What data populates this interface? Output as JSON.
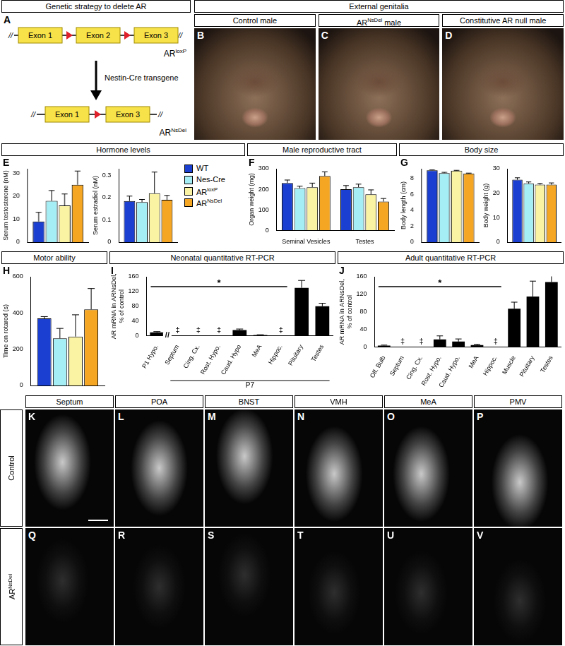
{
  "panel_a": {
    "letter": "A",
    "header": "Genetic strategy to delete AR",
    "break": "//",
    "top_exons": [
      "Exon 1",
      "Exon 2",
      "Exon 3"
    ],
    "top_allele": "ARloxP",
    "transgene": "Nestin-Cre transgene",
    "bottom_exons": [
      "Exon 1",
      "Exon 3"
    ],
    "bottom_allele": "ARNsDel"
  },
  "genitalia": {
    "header": "External genitalia",
    "photos": [
      {
        "letter": "B",
        "label": "Control male"
      },
      {
        "letter": "C",
        "label": "ARNsDel male"
      },
      {
        "letter": "D",
        "label": "Constitutive AR null male"
      }
    ]
  },
  "chart_data": [
    {
      "type": "bar",
      "letter": "E",
      "title": "Hormone levels",
      "categories": [
        null
      ],
      "series": [
        {
          "name": "WT",
          "color": "#1a3fd1",
          "values": [
            9
          ],
          "errors": [
            4
          ]
        },
        {
          "name": "Nes-Cre",
          "color": "#a6eef5",
          "values": [
            18
          ],
          "errors": [
            4.5
          ]
        },
        {
          "name": "ARloxP",
          "color": "#fbf3a4",
          "values": [
            16
          ],
          "errors": [
            5
          ]
        },
        {
          "name": "ARNsDel",
          "color": "#f5a623",
          "values": [
            25
          ],
          "errors": [
            6
          ]
        }
      ],
      "y_label": "Serum testosterone (nM)",
      "ylim": [
        0,
        32
      ],
      "yticks": [
        0,
        10,
        20,
        30
      ],
      "grid": false,
      "tick_labels": "y"
    },
    {
      "type": "bar",
      "categories": [
        null
      ],
      "series": [
        {
          "name": "WT",
          "color": "#1a3fd1",
          "values": [
            0.185
          ],
          "errors": [
            0.022
          ]
        },
        {
          "name": "Nes-Cre",
          "color": "#a6eef5",
          "values": [
            0.18
          ],
          "errors": [
            0.012
          ]
        },
        {
          "name": "ARloxP",
          "color": "#fbf3a4",
          "values": [
            0.22
          ],
          "errors": [
            0.095
          ]
        },
        {
          "name": "ARNsDel",
          "color": "#f5a623",
          "values": [
            0.19
          ],
          "errors": [
            0.02
          ]
        }
      ],
      "y_label": "Serum estradiol (nM)",
      "ylim": [
        0,
        0.33
      ],
      "yticks": [
        0,
        0.1,
        0.2,
        0.3
      ],
      "grid": false,
      "tick_labels": "y",
      "legend": "right"
    },
    {
      "type": "bar",
      "letter": "F",
      "title": "Male reproductive tract",
      "categories": [
        "Seminal Vesicles",
        "Testes"
      ],
      "series": [
        {
          "name": "WT",
          "color": "#1a3fd1",
          "values": [
            230,
            200
          ],
          "errors": [
            15,
            18
          ]
        },
        {
          "name": "Nes-Cre",
          "color": "#a6eef5",
          "values": [
            205,
            210
          ],
          "errors": [
            10,
            15
          ]
        },
        {
          "name": "ARloxP",
          "color": "#fbf3a4",
          "values": [
            210,
            175
          ],
          "errors": [
            20,
            22
          ]
        },
        {
          "name": "ARNsDel",
          "color": "#f5a623",
          "values": [
            265,
            140
          ],
          "errors": [
            20,
            15
          ]
        }
      ],
      "y_label": "Organ weight (mg)",
      "ylim": [
        0,
        300
      ],
      "yticks": [
        0,
        100,
        200,
        300
      ],
      "grid": false
    },
    {
      "type": "bar",
      "letter": "G",
      "title": "Body size",
      "categories": [
        null
      ],
      "series": [
        {
          "name": "WT",
          "color": "#1a3fd1",
          "values": [
            9.0
          ],
          "errors": [
            0.05
          ]
        },
        {
          "name": "Nes-Cre",
          "color": "#a6eef5",
          "values": [
            8.65
          ],
          "errors": [
            0.1
          ]
        },
        {
          "name": "ARloxP",
          "color": "#fbf3a4",
          "values": [
            8.95
          ],
          "errors": [
            0.05
          ]
        },
        {
          "name": "ARNsDel",
          "color": "#f5a623",
          "values": [
            8.6
          ],
          "errors": [
            0.05
          ]
        }
      ],
      "y_label": "Body length (cm)",
      "ylim": [
        0,
        9.2
      ],
      "yticks": [
        0,
        2,
        4,
        6,
        8
      ],
      "grid": false,
      "tick_labels": "y"
    },
    {
      "type": "bar",
      "categories": [
        null
      ],
      "series": [
        {
          "name": "WT",
          "color": "#1a3fd1",
          "values": [
            25.5
          ],
          "errors": [
            0.8
          ]
        },
        {
          "name": "Nes-Cre",
          "color": "#a6eef5",
          "values": [
            24
          ],
          "errors": [
            0.6
          ]
        },
        {
          "name": "ARloxP",
          "color": "#fbf3a4",
          "values": [
            23.5
          ],
          "errors": [
            0.5
          ]
        },
        {
          "name": "ARNsDel",
          "color": "#f5a623",
          "values": [
            23.5
          ],
          "errors": [
            0.7
          ]
        }
      ],
      "y_label": "Body weight (g)",
      "ylim": [
        0,
        30
      ],
      "yticks": [
        0,
        10,
        20,
        30
      ],
      "grid": false,
      "tick_labels": "y"
    },
    {
      "type": "bar",
      "letter": "H",
      "title": "Motor ability",
      "categories": [
        null
      ],
      "series": [
        {
          "name": "WT",
          "color": "#1a3fd1",
          "values": [
            370
          ],
          "errors": [
            10
          ]
        },
        {
          "name": "Nes-Cre",
          "color": "#a6eef5",
          "values": [
            260
          ],
          "errors": [
            55
          ]
        },
        {
          "name": "ARloxP",
          "color": "#fbf3a4",
          "values": [
            270
          ],
          "errors": [
            120
          ]
        },
        {
          "name": "ARNsDel",
          "color": "#f5a623",
          "values": [
            420
          ],
          "errors": [
            115
          ]
        }
      ],
      "y_label": "Time on rotarod (s)",
      "ylim": [
        0,
        600
      ],
      "yticks": [
        0,
        200,
        400,
        600
      ],
      "grid": false,
      "tick_labels": "y"
    },
    {
      "type": "bar",
      "letter": "I",
      "title": "Neonatal quantitative RT-PCR",
      "categories": [
        "P1 Hypo.",
        "Septum",
        "Cing. Cx.",
        "Rost. Hypo.",
        "Caud. Hypo",
        "MeA",
        "Hippoc.",
        "Pituitary",
        "Testes"
      ],
      "values": [
        9,
        null,
        null,
        null,
        15,
        2,
        null,
        130,
        80
      ],
      "errors": [
        2,
        null,
        null,
        null,
        3,
        0.5,
        null,
        20,
        8
      ],
      "value_labels": [
        null,
        "‡",
        "‡",
        "‡",
        null,
        null,
        "‡",
        null,
        null
      ],
      "color": "#000000",
      "y_label": [
        "AR mRNA in ARNsDel,",
        "% of control"
      ],
      "ylim": [
        0,
        160
      ],
      "yticks": [
        0,
        40,
        80,
        120,
        160
      ],
      "grid": false,
      "annotations": [
        {
          "text": "*",
          "from": "P1 Hypo.",
          "to": "Hippoc."
        }
      ],
      "groups": [
        {
          "text": "P7",
          "from": "Septum",
          "to": "Testes"
        }
      ],
      "axis_break": {
        "text": "//",
        "after": "P1 Hypo."
      }
    },
    {
      "type": "bar",
      "letter": "J",
      "title": "Adult quantitative RT-PCR",
      "categories": [
        "Olf. Bulb",
        "Septum",
        "Cing. Cx.",
        "Rost. Hypo.",
        "Caud. Hypo.",
        "MeA",
        "Hippoc.",
        "Muscle",
        "Pituitary",
        "Testes"
      ],
      "values": [
        3,
        null,
        null,
        17,
        12,
        4,
        null,
        87,
        115,
        148
      ],
      "errors": [
        1,
        null,
        null,
        8,
        6,
        2,
        null,
        15,
        35,
        35
      ],
      "value_labels": [
        null,
        "‡",
        "‡",
        null,
        null,
        null,
        "‡",
        null,
        null,
        null
      ],
      "color": "#000000",
      "y_label": [
        "AR mRNA in ARNsDel,",
        "% of control"
      ],
      "ylim": [
        0,
        160
      ],
      "yticks": [
        0,
        40,
        80,
        120,
        160
      ],
      "grid": false,
      "annotations": [
        {
          "text": "*",
          "from": "Olf. Bulb",
          "to": "Hippoc."
        }
      ]
    }
  ],
  "micrographs": {
    "columns": [
      "Septum",
      "POA",
      "BNST",
      "VMH",
      "MeA",
      "PMV"
    ],
    "rows": [
      {
        "label": "Control",
        "letters": [
          "K",
          "L",
          "M",
          "N",
          "O",
          "P"
        ]
      },
      {
        "label": "ARNsDel",
        "letters": [
          "Q",
          "R",
          "S",
          "T",
          "U",
          "V"
        ]
      }
    ]
  }
}
